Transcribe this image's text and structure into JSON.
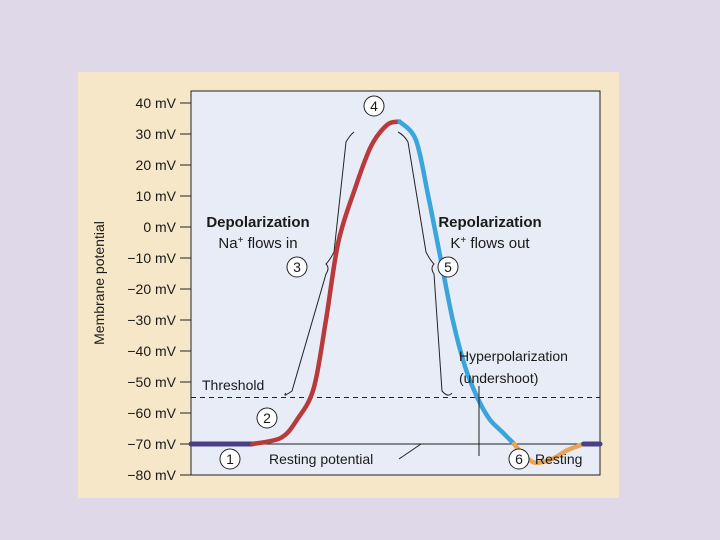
{
  "chart_data": {
    "type": "line",
    "ylabel": "Membrane potential",
    "yticks": [
      40,
      30,
      20,
      10,
      0,
      -10,
      -20,
      -30,
      -40,
      -50,
      -60,
      -70,
      -80
    ],
    "ytick_suffix": " mV",
    "ylim": [
      -80,
      40
    ],
    "xlim": [
      0,
      10
    ],
    "threshold_mV": -55,
    "resting_mV": -70,
    "series": [
      {
        "phase": "resting",
        "color": "#4a3f86",
        "x": [
          0,
          1.5
        ],
        "y": [
          -70,
          -70
        ]
      },
      {
        "phase": "depolarization",
        "color": "#b83a3a",
        "x": [
          1.5,
          2.2,
          2.6,
          3.0,
          3.3,
          3.6,
          4.0,
          4.4,
          4.8,
          5.1
        ],
        "y": [
          -70,
          -68,
          -62,
          -52,
          -30,
          -5,
          12,
          26,
          33,
          34
        ]
      },
      {
        "phase": "repolarization",
        "color": "#3aa5db",
        "x": [
          5.1,
          5.5,
          5.8,
          6.1,
          6.4,
          6.7,
          7.0,
          7.3,
          7.6,
          7.9
        ],
        "y": [
          34,
          28,
          10,
          -10,
          -30,
          -45,
          -55,
          -62,
          -66,
          -70
        ]
      },
      {
        "phase": "hyperpolarization",
        "color": "#e8a557",
        "x": [
          7.9,
          8.1,
          8.4,
          8.8,
          9.2,
          9.6
        ],
        "y": [
          -70,
          -73,
          -76,
          -75,
          -72,
          -70
        ]
      },
      {
        "phase": "resting-return",
        "color": "#4a3f86",
        "x": [
          9.6,
          10
        ],
        "y": [
          -70,
          -70
        ]
      }
    ],
    "annotations": {
      "depolarization": {
        "title": "Depolarization",
        "ion": "Na",
        "charge": "+",
        "rest": " flows in"
      },
      "repolarization": {
        "title": "Repolarization",
        "ion": "K",
        "charge": "+",
        "rest": " flows out"
      },
      "threshold": "Threshold",
      "resting_potential": "Resting potential",
      "hyperpolarization": [
        "Hyperpolarization",
        "(undershoot)"
      ],
      "resting": "Resting",
      "steps": [
        "1",
        "2",
        "3",
        "4",
        "5",
        "6"
      ]
    }
  }
}
